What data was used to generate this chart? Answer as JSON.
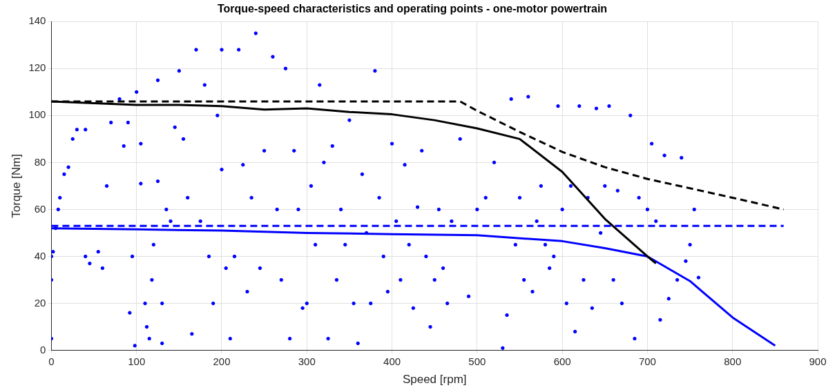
{
  "chart_data": {
    "type": "scatter",
    "title": "Torque-speed characteristics and operating points - one-motor powertrain",
    "xlabel": "Speed [rpm]",
    "ylabel": "Torque [Nm]",
    "xlim": [
      0,
      900
    ],
    "xticks": [
      0,
      100,
      200,
      300,
      400,
      500,
      600,
      700,
      800,
      900
    ],
    "ylim": [
      0,
      140
    ],
    "yticks": [
      0,
      20,
      40,
      60,
      80,
      100,
      120,
      140
    ],
    "grid": true,
    "legend": false,
    "series": [
      {
        "type": "scatter",
        "marker": "circle",
        "color": "#0000ff",
        "x": [
          0,
          0,
          0,
          2,
          5,
          8,
          10,
          15,
          20,
          25,
          30,
          40,
          40,
          45,
          55,
          60,
          65,
          70,
          80,
          85,
          90,
          92,
          95,
          98,
          100,
          105,
          105,
          110,
          112,
          115,
          118,
          120,
          125,
          125,
          130,
          130,
          135,
          140,
          145,
          150,
          155,
          160,
          165,
          170,
          175,
          180,
          185,
          190,
          195,
          200,
          200,
          205,
          210,
          215,
          220,
          225,
          230,
          235,
          240,
          245,
          250,
          260,
          265,
          270,
          275,
          280,
          285,
          290,
          295,
          300,
          305,
          310,
          315,
          320,
          325,
          330,
          335,
          340,
          345,
          350,
          355,
          360,
          365,
          370,
          375,
          380,
          385,
          390,
          395,
          400,
          405,
          410,
          415,
          420,
          425,
          430,
          435,
          440,
          445,
          450,
          455,
          460,
          465,
          470,
          480,
          490,
          500,
          510,
          520,
          530,
          535,
          540,
          545,
          550,
          555,
          560,
          565,
          570,
          575,
          580,
          585,
          590,
          595,
          600,
          605,
          610,
          615,
          620,
          625,
          630,
          635,
          640,
          645,
          650,
          655,
          660,
          665,
          670,
          680,
          685,
          690,
          700,
          705,
          710,
          715,
          720,
          725,
          735,
          740,
          745,
          750,
          755,
          760
        ],
        "values": [
          5,
          30,
          40,
          42,
          52,
          60,
          65,
          75,
          78,
          90,
          94,
          94,
          40,
          37,
          42,
          35,
          70,
          97,
          107,
          87,
          97,
          16,
          40,
          2,
          110,
          88,
          71,
          20,
          10,
          5,
          30,
          45,
          115,
          72,
          3,
          20,
          60,
          55,
          95,
          119,
          90,
          65,
          7,
          128,
          55,
          113,
          40,
          20,
          100,
          128,
          77,
          35,
          5,
          40,
          128,
          79,
          25,
          65,
          135,
          35,
          85,
          125,
          60,
          30,
          120,
          5,
          85,
          60,
          18,
          20,
          70,
          45,
          113,
          80,
          5,
          87,
          30,
          60,
          45,
          98,
          20,
          3,
          75,
          50,
          20,
          119,
          65,
          40,
          25,
          88,
          55,
          30,
          79,
          45,
          18,
          61,
          85,
          40,
          10,
          30,
          60,
          35,
          20,
          55,
          90,
          23,
          60,
          65,
          80,
          1,
          15,
          107,
          45,
          65,
          30,
          108,
          25,
          55,
          70,
          45,
          35,
          40,
          104,
          60,
          20,
          70,
          8,
          104,
          30,
          65,
          18,
          103,
          50,
          70,
          104,
          30,
          68,
          20,
          100,
          5,
          65,
          60,
          88,
          55,
          13,
          83,
          22,
          30,
          82,
          38,
          45,
          60,
          31
        ]
      },
      {
        "type": "line",
        "marker": "none",
        "color": "#000000",
        "line_style": "dashed",
        "x": [
          0,
          480,
          500,
          550,
          600,
          650,
          700,
          750,
          800,
          860
        ],
        "values": [
          106,
          106,
          102,
          93,
          84.5,
          78,
          73,
          69,
          65,
          60
        ]
      },
      {
        "type": "line",
        "marker": "none",
        "color": "#000000",
        "line_style": "solid",
        "x": [
          0,
          100,
          150,
          200,
          250,
          300,
          350,
          400,
          450,
          500,
          550,
          600,
          650,
          700,
          710
        ],
        "values": [
          106,
          104.5,
          104.5,
          104,
          102.5,
          103,
          101.5,
          100.5,
          98,
          94.5,
          90,
          76,
          56,
          40,
          37
        ]
      },
      {
        "type": "line",
        "marker": "none",
        "color": "#0000ff",
        "line_style": "dashed",
        "x": [
          0,
          860
        ],
        "values": [
          53,
          53
        ]
      },
      {
        "type": "line",
        "marker": "none",
        "color": "#0000ff",
        "line_style": "solid",
        "x": [
          0,
          100,
          200,
          300,
          400,
          500,
          600,
          650,
          700,
          750,
          800,
          850
        ],
        "values": [
          52,
          51.5,
          51,
          50,
          49.5,
          49,
          46.5,
          43.5,
          40,
          29.5,
          14,
          2
        ]
      }
    ]
  }
}
